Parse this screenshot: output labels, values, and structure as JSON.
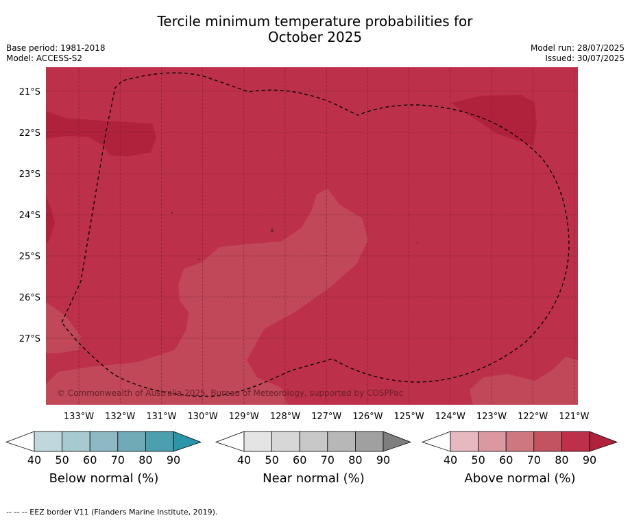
{
  "title": {
    "line1": "Tercile minimum temperature probabilities for",
    "line2": "October 2025"
  },
  "meta": {
    "base_period": "Base period: 1981-2018",
    "model": "Model: ACCESS-S2",
    "model_run": "Model run: 28/07/2025",
    "issued": "Issued: 30/07/2025"
  },
  "map": {
    "lat_labels": [
      "21°S",
      "22°S",
      "23°S",
      "24°S",
      "25°S",
      "26°S",
      "27°S"
    ],
    "lon_labels": [
      "133°W",
      "132°W",
      "131°W",
      "130°W",
      "129°W",
      "128°W",
      "127°W",
      "126°W",
      "125°W",
      "124°W",
      "123°W",
      "122°W",
      "121°W"
    ],
    "copyright": "© Commonwealth of Australia 2025, Bureau of Meteorology, supported by COSPPac",
    "colors": {
      "above_80": "#bd3049",
      "above_90": "#b0213c",
      "above_70": "#c04858"
    }
  },
  "colorbars": [
    {
      "label": "Below normal (%)",
      "ticks": [
        "40",
        "50",
        "60",
        "70",
        "80",
        "90"
      ],
      "colors": [
        "#bfd7dd",
        "#a7c9d0",
        "#8cb9c3",
        "#6faab6",
        "#4c9fae",
        "#2b95a9"
      ]
    },
    {
      "label": "Near normal (%)",
      "ticks": [
        "40",
        "50",
        "60",
        "70",
        "80",
        "90"
      ],
      "colors": [
        "#e4e4e4",
        "#d7d7d7",
        "#c8c8c8",
        "#b7b7b7",
        "#a0a0a0",
        "#7e7e7e"
      ]
    },
    {
      "label": "Above normal (%)",
      "ticks": [
        "40",
        "50",
        "60",
        "70",
        "80",
        "90"
      ],
      "colors": [
        "#e6b9c0",
        "#da99a1",
        "#cf7780",
        "#c45361",
        "#bd3049",
        "#b0213c"
      ]
    }
  ],
  "footer": "--  --  -- EEZ border V11 (Flanders Marine Institute, 2019)."
}
